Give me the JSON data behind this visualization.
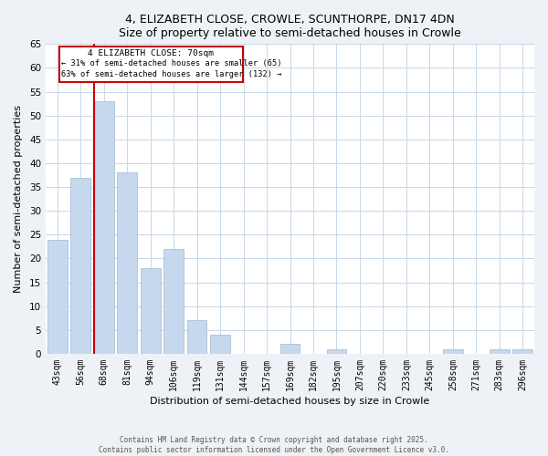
{
  "title": "4, ELIZABETH CLOSE, CROWLE, SCUNTHORPE, DN17 4DN",
  "subtitle": "Size of property relative to semi-detached houses in Crowle",
  "xlabel": "Distribution of semi-detached houses by size in Crowle",
  "ylabel": "Number of semi-detached properties",
  "bar_labels": [
    "43sqm",
    "56sqm",
    "68sqm",
    "81sqm",
    "94sqm",
    "106sqm",
    "119sqm",
    "131sqm",
    "144sqm",
    "157sqm",
    "169sqm",
    "182sqm",
    "195sqm",
    "207sqm",
    "220sqm",
    "233sqm",
    "245sqm",
    "258sqm",
    "271sqm",
    "283sqm",
    "296sqm"
  ],
  "bar_values": [
    24,
    37,
    53,
    38,
    18,
    22,
    7,
    4,
    0,
    0,
    2,
    0,
    1,
    0,
    0,
    0,
    0,
    1,
    0,
    1,
    1
  ],
  "bar_color": "#c5d8ed",
  "bar_edge_color": "#a0b8d0",
  "vline_color": "#cc0000",
  "annotation_title": "4 ELIZABETH CLOSE: 70sqm",
  "annotation_line1": "← 31% of semi-detached houses are smaller (65)",
  "annotation_line2": "63% of semi-detached houses are larger (132) →",
  "annotation_box_color": "#cc0000",
  "ylim": [
    0,
    65
  ],
  "yticks": [
    0,
    5,
    10,
    15,
    20,
    25,
    30,
    35,
    40,
    45,
    50,
    55,
    60,
    65
  ],
  "footer_line1": "Contains HM Land Registry data © Crown copyright and database right 2025.",
  "footer_line2": "Contains public sector information licensed under the Open Government Licence v3.0.",
  "bg_color": "#eef2f7",
  "plot_bg_color": "#ffffff",
  "grid_color": "#c8d8e8"
}
